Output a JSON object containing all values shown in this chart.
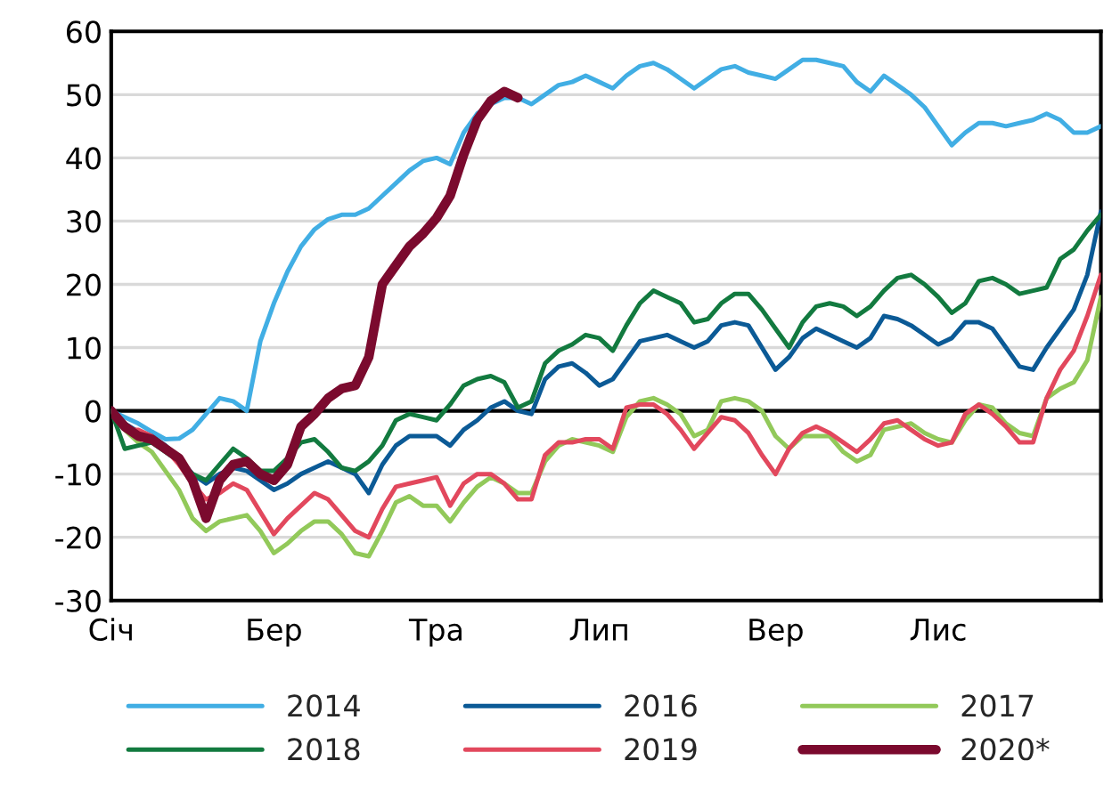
{
  "chart_data": {
    "type": "line",
    "categories": [
      "Січ",
      null,
      null,
      null,
      null,
      null,
      null,
      null,
      null,
      null,
      null,
      null,
      "Бер",
      null,
      null,
      null,
      null,
      null,
      null,
      null,
      null,
      null,
      null,
      null,
      "Тра",
      null,
      null,
      null,
      null,
      null,
      null,
      null,
      null,
      null,
      null,
      null,
      "Лип",
      null,
      null,
      null,
      null,
      null,
      null,
      null,
      null,
      null,
      null,
      null,
      null,
      "Вер",
      null,
      null,
      null,
      null,
      null,
      null,
      null,
      null,
      null,
      null,
      null,
      "Лис",
      null,
      null,
      null,
      null,
      null,
      null,
      null,
      null,
      null,
      null,
      null,
      null
    ],
    "ylim": [
      -30,
      60
    ],
    "yticks": [
      -30,
      -20,
      -10,
      0,
      10,
      20,
      30,
      40,
      50,
      60
    ],
    "grid": "y",
    "legend": "bottom",
    "marker": "none",
    "line_style": "solid",
    "ref_lines": [
      {
        "axis": "y",
        "value": 0,
        "color": "#000000"
      }
    ],
    "series": [
      {
        "name": "2014",
        "color": "#41aee4",
        "values": [
          0,
          -1,
          -2,
          -3.3,
          -4.5,
          -4.4,
          -3,
          -0.5,
          2,
          1.5,
          0,
          11,
          17,
          22,
          26,
          28.7,
          30.3,
          31,
          31,
          32,
          34,
          36,
          38,
          39.5,
          40,
          39,
          44,
          47,
          48.5,
          49.5,
          49.5,
          48.5,
          50,
          51.5,
          52,
          53,
          52,
          51,
          53,
          54.5,
          55,
          54,
          52.5,
          51,
          52.5,
          54,
          54.5,
          53.5,
          53,
          52.5,
          54,
          55.5,
          55.5,
          55,
          54.5,
          52,
          50.5,
          53,
          51.5,
          50,
          48,
          45,
          42,
          44,
          45.5,
          45.5,
          45,
          45.5,
          46,
          47,
          46,
          44,
          44,
          45
        ]
      },
      {
        "name": "2016",
        "color": "#0b5a96",
        "values": [
          0,
          -2,
          -3.3,
          -4,
          -5.5,
          -7.5,
          -10,
          -11.5,
          -10,
          -9,
          -9.5,
          -11,
          -12.5,
          -11.5,
          -10,
          -9,
          -8,
          -9,
          -10,
          -13,
          -8.5,
          -5.5,
          -4,
          -4,
          -4,
          -5.5,
          -3,
          -1.5,
          0.5,
          1.5,
          0,
          -0.5,
          5,
          7,
          7.5,
          6,
          4,
          5,
          8,
          11,
          11.5,
          12,
          11,
          10,
          11,
          13.5,
          14,
          13.5,
          10,
          6.5,
          8.5,
          11.5,
          13,
          12,
          11,
          10,
          11.5,
          15,
          14.5,
          13.5,
          12,
          10.5,
          11.5,
          14,
          14,
          13,
          10,
          7,
          6.5,
          10,
          13,
          16,
          21.5,
          31.5
        ]
      },
      {
        "name": "2017",
        "color": "#92c95a",
        "values": [
          0,
          -3,
          -5,
          -6.5,
          -9.5,
          -12.5,
          -17,
          -19,
          -17.5,
          -17,
          -16.5,
          -19,
          -22.5,
          -21,
          -19,
          -17.5,
          -17.5,
          -19.5,
          -22.5,
          -23,
          -19,
          -14.5,
          -13.5,
          -15,
          -15,
          -17.5,
          -14.5,
          -12,
          -10.5,
          -11.5,
          -13,
          -13,
          -8,
          -5.5,
          -4.5,
          -5,
          -5.5,
          -6.5,
          -1,
          1.5,
          2,
          1,
          -0.5,
          -4,
          -3,
          1.5,
          2,
          1.5,
          0,
          -4,
          -6,
          -4,
          -4,
          -4,
          -6.5,
          -8,
          -7,
          -3,
          -2.5,
          -2,
          -3.5,
          -4.5,
          -5,
          -1.5,
          1,
          0.5,
          -2,
          -3.5,
          -4,
          2,
          3.5,
          4.5,
          8,
          18
        ]
      },
      {
        "name": "2018",
        "color": "#127a3f",
        "values": [
          0,
          -6,
          -5.5,
          -5,
          -6.5,
          -8,
          -10,
          -11,
          -8.5,
          -6,
          -7.5,
          -9.5,
          -9.5,
          -7.5,
          -5,
          -4.5,
          -6.5,
          -9,
          -9.5,
          -8,
          -5.5,
          -1.5,
          -0.5,
          -1,
          -1.5,
          1,
          4,
          5,
          5.5,
          4.5,
          0.5,
          1.5,
          7.5,
          9.5,
          10.5,
          12,
          11.5,
          9.5,
          13.5,
          17,
          19,
          18,
          17,
          14,
          14.5,
          17,
          18.5,
          18.5,
          16,
          13,
          10,
          14,
          16.5,
          17,
          16.5,
          15,
          16.5,
          19,
          21,
          21.5,
          20,
          18,
          15.5,
          17,
          20.5,
          21,
          20,
          18.5,
          19,
          19.5,
          24,
          25.5,
          28.5,
          31
        ]
      },
      {
        "name": "2019",
        "color": "#e2485d",
        "values": [
          0,
          -3,
          -3,
          -4,
          -6,
          -8.5,
          -11.5,
          -14,
          -13,
          -11.5,
          -12.5,
          -16,
          -19.5,
          -17,
          -15,
          -13,
          -14,
          -16.5,
          -19,
          -20,
          -15.5,
          -12,
          -11.5,
          -11,
          -10.5,
          -15,
          -11.5,
          -10,
          -10,
          -11.5,
          -14,
          -14,
          -7,
          -5,
          -5,
          -4.5,
          -4.5,
          -6,
          0.5,
          1,
          1,
          -0.5,
          -3,
          -6,
          -3.5,
          -1,
          -1.5,
          -3.5,
          -7,
          -10,
          -6,
          -3.5,
          -2.5,
          -3.5,
          -5,
          -6.5,
          -4.5,
          -2,
          -1.5,
          -3,
          -4.5,
          -5.5,
          -5,
          -0.5,
          1,
          -0.5,
          -2.5,
          -5,
          -5,
          2,
          6.5,
          9.5,
          15,
          21.5
        ]
      },
      {
        "name": "2020*",
        "color": "#7b0a2e",
        "values": [
          0,
          -2.5,
          -4,
          -4.5,
          -6,
          -7.5,
          -11,
          -17,
          -11,
          -8.5,
          -8,
          -10,
          -11,
          -8.5,
          -2.5,
          -0.5,
          2,
          3.5,
          4,
          8.5,
          20,
          23,
          26,
          28,
          30.5,
          34,
          40.5,
          46,
          49,
          50.5,
          49.5,
          null,
          null,
          null,
          null,
          null,
          null,
          null,
          null,
          null,
          null,
          null,
          null,
          null,
          null,
          null,
          null,
          null,
          null,
          null,
          null,
          null,
          null,
          null,
          null,
          null,
          null,
          null,
          null,
          null,
          null,
          null,
          null,
          null,
          null,
          null,
          null,
          null,
          null,
          null,
          null,
          null,
          null,
          null
        ]
      }
    ]
  }
}
